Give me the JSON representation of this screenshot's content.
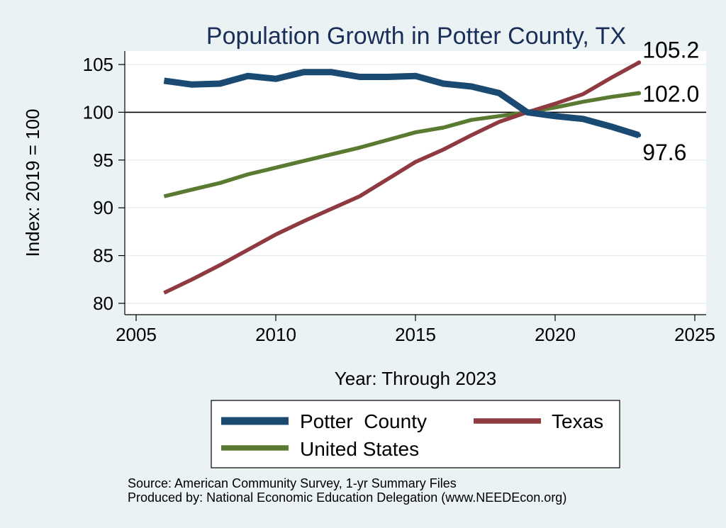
{
  "chart_data": {
    "type": "line",
    "title": "Population Growth in Potter County, TX",
    "xlabel": "Year: Through 2023",
    "ylabel": "Index: 2019 = 100",
    "xlim": [
      2005,
      2025
    ],
    "ylim": [
      80,
      105
    ],
    "xticks": [
      2005,
      2010,
      2015,
      2020,
      2025
    ],
    "yticks": [
      80,
      85,
      90,
      95,
      100,
      105
    ],
    "reference_line": 100,
    "grid": true,
    "legend_position": "bottom",
    "series": [
      {
        "name": "Potter  County",
        "color": "#1a4a72",
        "x": [
          2006,
          2007,
          2008,
          2009,
          2010,
          2011,
          2012,
          2013,
          2014,
          2015,
          2016,
          2017,
          2018,
          2019,
          2020,
          2021,
          2022,
          2023
        ],
        "values": [
          103.3,
          102.9,
          103.0,
          103.8,
          103.5,
          104.2,
          104.2,
          103.7,
          103.7,
          103.8,
          103.0,
          102.7,
          102.0,
          100.0,
          99.6,
          99.3,
          98.5,
          97.6
        ],
        "end_label": "97.6"
      },
      {
        "name": "Texas",
        "color": "#8e3a40",
        "x": [
          2006,
          2007,
          2008,
          2009,
          2010,
          2011,
          2012,
          2013,
          2014,
          2015,
          2016,
          2017,
          2018,
          2019,
          2020,
          2021,
          2022,
          2023
        ],
        "values": [
          81.1,
          82.5,
          84.0,
          85.6,
          87.2,
          88.6,
          89.9,
          91.2,
          93.0,
          94.8,
          96.1,
          97.6,
          99.0,
          100.0,
          100.9,
          101.9,
          103.6,
          105.2
        ],
        "end_label": "105.2"
      },
      {
        "name": "United States",
        "color": "#5a7a32",
        "x": [
          2006,
          2007,
          2008,
          2009,
          2010,
          2011,
          2012,
          2013,
          2014,
          2015,
          2016,
          2017,
          2018,
          2019,
          2020,
          2021,
          2022,
          2023
        ],
        "values": [
          91.2,
          91.9,
          92.6,
          93.5,
          94.2,
          94.9,
          95.6,
          96.3,
          97.1,
          97.9,
          98.4,
          99.2,
          99.6,
          100.0,
          100.5,
          101.1,
          101.6,
          102.0
        ],
        "end_label": "102.0"
      }
    ],
    "source_lines": [
      "Source: American Community Survey, 1-yr Summary Files",
      "Produced by: National Economic Education Delegation (www.NEEDEcon.org)"
    ]
  }
}
